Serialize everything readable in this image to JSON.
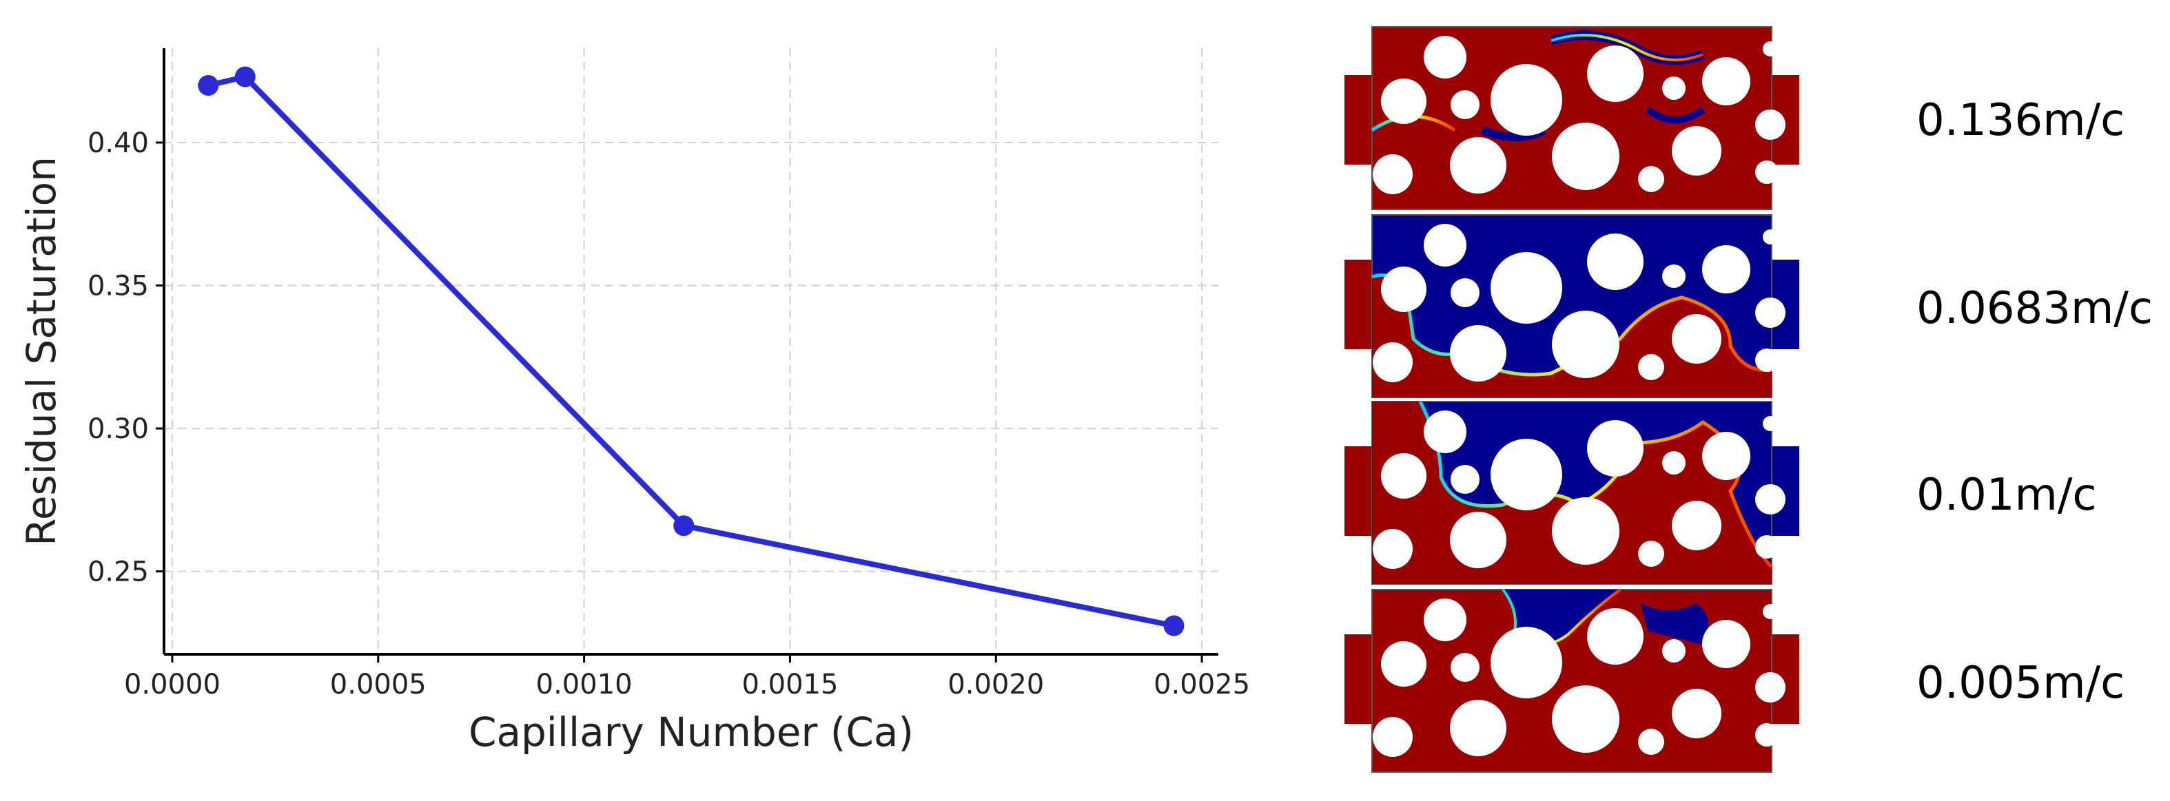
{
  "chart_data": {
    "type": "line",
    "title": "",
    "xlabel": "Capillary Number (Ca)",
    "ylabel": "Residual Saturation",
    "xlim": [
      -2e-05,
      0.00254
    ],
    "ylim": [
      0.221,
      0.433
    ],
    "xticks": [
      0.0,
      0.0005,
      0.001,
      0.0015,
      0.002,
      0.0025
    ],
    "xtick_labels": [
      "0.0000",
      "0.0005",
      "0.0010",
      "0.0015",
      "0.0020",
      "0.0025"
    ],
    "yticks": [
      0.25,
      0.3,
      0.35,
      0.4
    ],
    "ytick_labels": [
      "0.25",
      "0.30",
      "0.35",
      "0.40"
    ],
    "grid": true,
    "series": [
      {
        "name": "Residual Saturation",
        "color": "#2b2bd6",
        "x": [
          8.75e-05,
          0.000177,
          0.001242,
          0.002432
        ],
        "y": [
          0.42,
          0.423,
          0.266,
          0.231
        ]
      }
    ]
  },
  "simulation_panels": [
    {
      "label": "0.136m/c"
    },
    {
      "label": "0.0683m/c"
    },
    {
      "label": "0.01m/c"
    },
    {
      "label": "0.005m/c"
    }
  ],
  "colors": {
    "line": "#2b2bd6",
    "grid": "#d0d0d0",
    "fluid_red": "#9b0000",
    "fluid_blue": "#00008f",
    "grain": "#ffffff"
  }
}
